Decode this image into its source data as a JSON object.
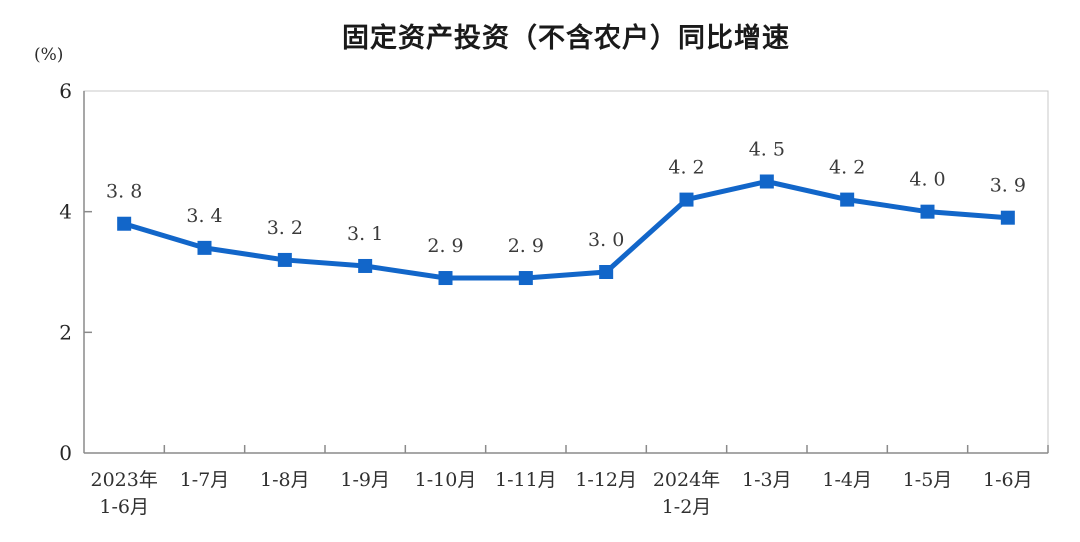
{
  "chart_data": {
    "type": "line",
    "title": "固定资产投资（不含农户）同比增速",
    "unit_label": "(%)",
    "categories": [
      "2023年\n1-6月",
      "1-7月",
      "1-8月",
      "1-9月",
      "1-10月",
      "1-11月",
      "1-12月",
      "2024年\n1-2月",
      "1-3月",
      "1-4月",
      "1-5月",
      "1-6月"
    ],
    "series": [
      {
        "name": "固定资产投资（不含农户）同比增速",
        "values": [
          3.8,
          3.4,
          3.2,
          3.1,
          2.9,
          2.9,
          3.0,
          4.2,
          4.5,
          4.2,
          4.0,
          3.9
        ],
        "point_labels": [
          "3. 8",
          "3. 4",
          "3. 2",
          "3. 1",
          "2. 9",
          "2. 9",
          "3. 0",
          "4. 2",
          "4. 5",
          "4. 2",
          "4. 0",
          "3. 9"
        ]
      }
    ],
    "xlabel": "",
    "ylabel": "(%)",
    "ylim": [
      0,
      6
    ],
    "yticks": [
      0,
      2,
      4,
      6
    ],
    "grid": false,
    "legend_position": "none",
    "marker": "square",
    "colors": {
      "line": "#1266c9",
      "marker": "#1266c9",
      "point_label": "#3b3b3b",
      "axis_line": "#8a8a8a",
      "plot_border": "#c8c8c8",
      "tick_label": "#303030",
      "title": "#1a1a1a"
    }
  }
}
